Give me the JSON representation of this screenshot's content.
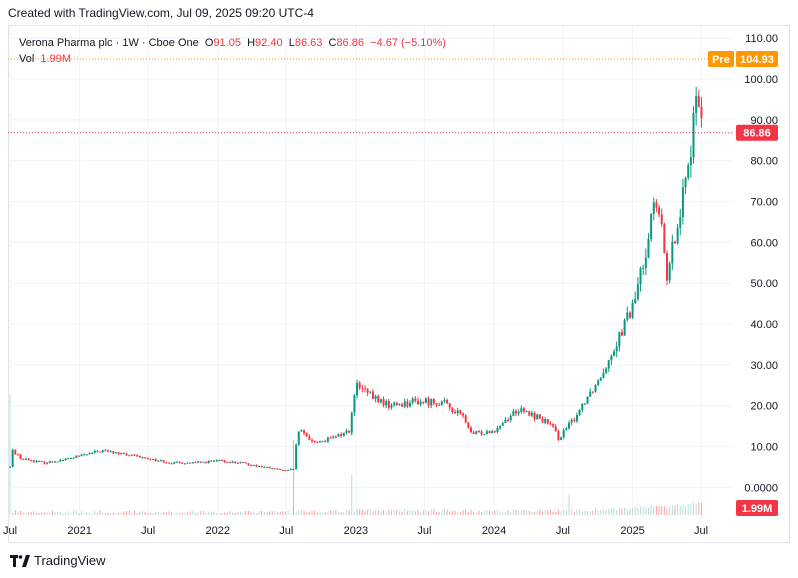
{
  "header": {
    "created_with": "Created with TradingView.com, Jul 09, 2025 09:20 UTC-4"
  },
  "legend": {
    "symbol": "Verona Pharma plc · 1W · Cboe One",
    "o_label": "O",
    "o_value": "91.05",
    "h_label": "H",
    "h_value": "92.40",
    "l_label": "L",
    "l_value": "86.63",
    "c_label": "C",
    "c_value": "86.86",
    "change": "−4.67 (−5.10%)",
    "vol_label": "Vol",
    "vol_value": "1.99M"
  },
  "badges": {
    "pre_label": "Pre",
    "pre_value": "104.93",
    "last_price": "86.86",
    "volume": "1.99M"
  },
  "footer": {
    "brand": "TradingView"
  },
  "colors": {
    "up": "#089981",
    "down": "#f23645",
    "pre": "#ff9800",
    "grid": "#f0f3fa"
  },
  "chart_data": {
    "type": "candlestick",
    "y_ticks": [
      "110.00",
      "100.00",
      "90.00",
      "80.00",
      "70.00",
      "60.00",
      "50.00",
      "40.00",
      "30.00",
      "20.00",
      "10.00",
      "0.0000"
    ],
    "y_tick_values": [
      110,
      100,
      90,
      80,
      70,
      60,
      50,
      40,
      30,
      20,
      10,
      0
    ],
    "ylim": [
      -8,
      113
    ],
    "x_ticks": [
      "Jul",
      "2021",
      "Jul",
      "2022",
      "Jul",
      "2023",
      "Jul",
      "2024",
      "Jul",
      "2025",
      "Jul"
    ],
    "x_tick_dates": [
      "2020-07-01",
      "2021-01-01",
      "2021-07-01",
      "2022-01-01",
      "2022-07-01",
      "2023-01-01",
      "2023-07-01",
      "2024-01-01",
      "2024-07-01",
      "2025-01-01",
      "2025-07-01"
    ],
    "xlim": [
      "2020-07-01",
      "2025-07-14"
    ],
    "price_anchors": {
      "dates": [
        "2020-07-01",
        "2020-07-08",
        "2020-08-01",
        "2020-10-01",
        "2020-12-01",
        "2021-03-01",
        "2021-05-01",
        "2021-07-01",
        "2021-09-01",
        "2021-11-01",
        "2022-01-01",
        "2022-03-01",
        "2022-05-01",
        "2022-07-01",
        "2022-07-20",
        "2022-08-01",
        "2022-09-15",
        "2022-11-01",
        "2022-12-15",
        "2023-01-01",
        "2023-02-15",
        "2023-04-01",
        "2023-06-01",
        "2023-08-15",
        "2023-10-15",
        "2023-11-01",
        "2024-01-01",
        "2024-03-01",
        "2024-05-01",
        "2024-06-01",
        "2024-06-20",
        "2024-08-01",
        "2024-09-01",
        "2024-10-01",
        "2024-11-01",
        "2024-12-01",
        "2025-01-01",
        "2025-02-01",
        "2025-02-20",
        "2025-03-10",
        "2025-04-05",
        "2025-04-25",
        "2025-05-10",
        "2025-06-01",
        "2025-06-20",
        "2025-06-30",
        "2025-07-07"
      ],
      "close": [
        5,
        9,
        7,
        6,
        7,
        9,
        8,
        7,
        6,
        6,
        6.5,
        6,
        5,
        4,
        4.5,
        14,
        11,
        12,
        14,
        25,
        22,
        20,
        21,
        21,
        17,
        13,
        14,
        19,
        17,
        15,
        12,
        17,
        22,
        26,
        32,
        38,
        44,
        56,
        68,
        68,
        50,
        64,
        70,
        82,
        93,
        96,
        86.86
      ]
    },
    "volume_spikes": [
      {
        "date": "2020-07-01",
        "value": "high"
      },
      {
        "date": "2022-07-20",
        "value": "high"
      },
      {
        "date": "2022-12-20",
        "value": "high"
      },
      {
        "date": "2024-07-15",
        "value": "medium"
      }
    ]
  }
}
